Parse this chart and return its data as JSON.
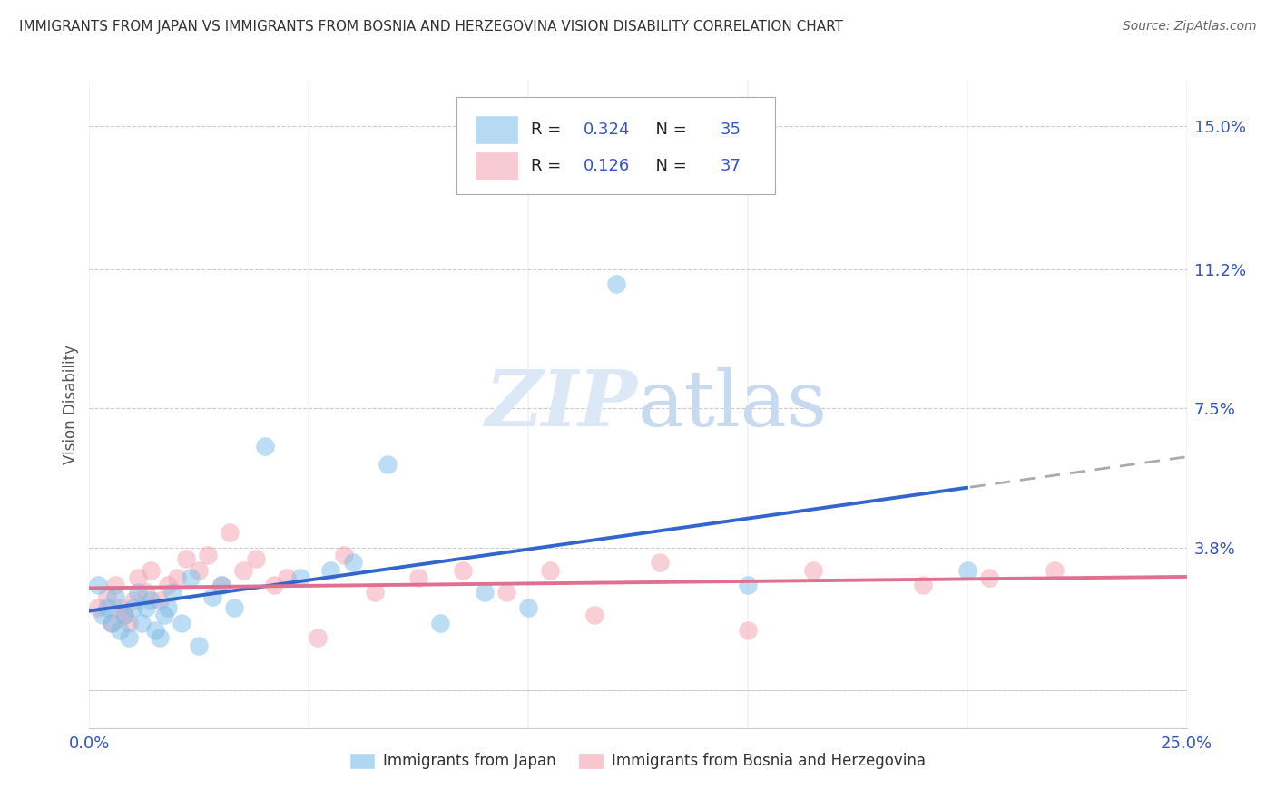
{
  "title": "IMMIGRANTS FROM JAPAN VS IMMIGRANTS FROM BOSNIA AND HERZEGOVINA VISION DISABILITY CORRELATION CHART",
  "source": "Source: ZipAtlas.com",
  "ylabel": "Vision Disability",
  "xlim": [
    0.0,
    0.25
  ],
  "ylim": [
    -0.01,
    0.162
  ],
  "ytick_vals": [
    0.0,
    0.038,
    0.075,
    0.112,
    0.15
  ],
  "ytick_labels": [
    "",
    "3.8%",
    "7.5%",
    "11.2%",
    "15.0%"
  ],
  "xtick_vals": [
    0.0,
    0.05,
    0.1,
    0.15,
    0.2,
    0.25
  ],
  "xtick_labels": [
    "0.0%",
    "",
    "",
    "",
    "",
    "25.0%"
  ],
  "japan_color": "#7bbde8",
  "bosnia_color": "#f4a0b0",
  "japan_line_color": "#3366cc",
  "bosnia_line_color": "#e07090",
  "japan_R": 0.324,
  "japan_N": 35,
  "bosnia_R": 0.126,
  "bosnia_N": 37,
  "japan_scatter_x": [
    0.002,
    0.003,
    0.004,
    0.005,
    0.006,
    0.007,
    0.008,
    0.009,
    0.01,
    0.011,
    0.012,
    0.013,
    0.014,
    0.015,
    0.016,
    0.017,
    0.018,
    0.019,
    0.021,
    0.023,
    0.025,
    0.028,
    0.03,
    0.033,
    0.04,
    0.048,
    0.055,
    0.06,
    0.068,
    0.08,
    0.09,
    0.1,
    0.12,
    0.15,
    0.2
  ],
  "japan_scatter_y": [
    0.028,
    0.02,
    0.022,
    0.018,
    0.025,
    0.016,
    0.02,
    0.014,
    0.022,
    0.026,
    0.018,
    0.022,
    0.024,
    0.016,
    0.014,
    0.02,
    0.022,
    0.026,
    0.018,
    0.03,
    0.012,
    0.025,
    0.028,
    0.022,
    0.065,
    0.03,
    0.032,
    0.034,
    0.06,
    0.018,
    0.026,
    0.022,
    0.108,
    0.028,
    0.032
  ],
  "bosnia_scatter_x": [
    0.002,
    0.004,
    0.005,
    0.006,
    0.007,
    0.008,
    0.009,
    0.01,
    0.011,
    0.013,
    0.014,
    0.016,
    0.018,
    0.02,
    0.022,
    0.025,
    0.027,
    0.03,
    0.032,
    0.035,
    0.038,
    0.042,
    0.045,
    0.052,
    0.058,
    0.065,
    0.075,
    0.085,
    0.095,
    0.105,
    0.115,
    0.13,
    0.15,
    0.165,
    0.19,
    0.205,
    0.22
  ],
  "bosnia_scatter_y": [
    0.022,
    0.025,
    0.018,
    0.028,
    0.022,
    0.02,
    0.018,
    0.024,
    0.03,
    0.026,
    0.032,
    0.024,
    0.028,
    0.03,
    0.035,
    0.032,
    0.036,
    0.028,
    0.042,
    0.032,
    0.035,
    0.028,
    0.03,
    0.014,
    0.036,
    0.026,
    0.03,
    0.032,
    0.026,
    0.032,
    0.02,
    0.034,
    0.016,
    0.032,
    0.028,
    0.03,
    0.032
  ],
  "background_color": "#ffffff",
  "grid_color": "#cccccc",
  "watermark_color": "#dce8f5"
}
